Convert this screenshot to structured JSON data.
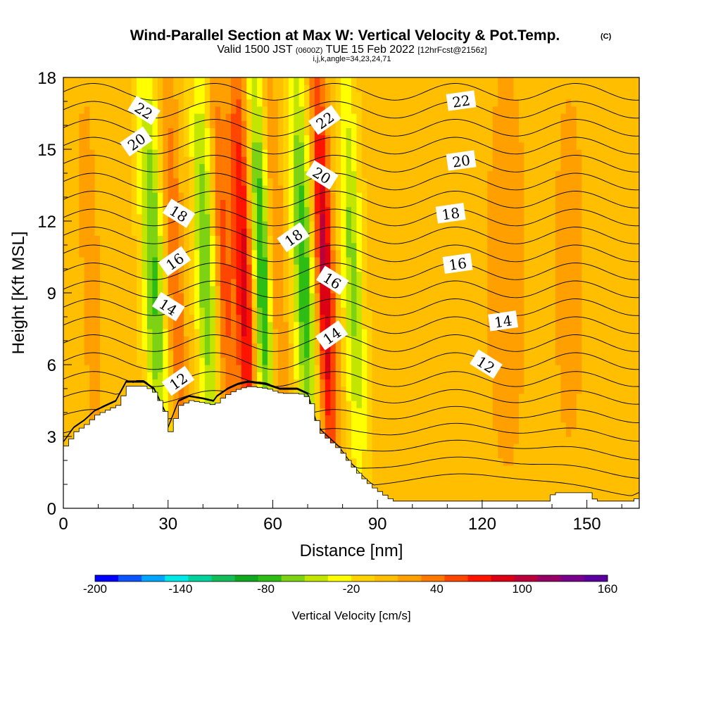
{
  "chart_data": {
    "type": "heatmap",
    "title": "Wind-Parallel Section at Max W: Vertical Velocity & Pot.Temp.",
    "title_tag": "(C)",
    "subtitle_main": "Valid 1500 JST",
    "subtitle_utc": "(0600Z)",
    "subtitle_date": "TUE 15 Feb 2022",
    "subtitle_fcst": "[12hrFcst@2156z]",
    "subtitle_index": "i,j,k,angle=34,23,24,71",
    "xlabel": "Distance [nm]",
    "ylabel": "Height [Kft MSL]",
    "xlim": [
      0,
      165
    ],
    "ylim": [
      0,
      18
    ],
    "x_ticks": [
      "0",
      "30",
      "60",
      "90",
      "120",
      "150"
    ],
    "y_ticks": [
      "0",
      "3",
      "6",
      "9",
      "12",
      "15",
      "18"
    ],
    "x_tick_values": [
      0,
      30,
      60,
      90,
      120,
      150
    ],
    "y_tick_values": [
      0,
      3,
      6,
      9,
      12,
      15,
      18
    ],
    "colorbar": {
      "label": "Vertical Velocity [cm/s]",
      "range": [
        -200,
        160
      ],
      "tick_labels": [
        "-200",
        "-140",
        "-80",
        "-20",
        "40",
        "100",
        "160"
      ],
      "colors": [
        "#0000ff",
        "#0a55ff",
        "#00a5ff",
        "#00e8e8",
        "#00d29b",
        "#14bd5a",
        "#0fa81e",
        "#2dbd14",
        "#7dd214",
        "#c2e600",
        "#ffff00",
        "#ffd200",
        "#ffbe00",
        "#ffa000",
        "#ff7800",
        "#ff4600",
        "#ff1400",
        "#dc0014",
        "#b9003c",
        "#960064",
        "#78008c",
        "#5a00a0"
      ]
    },
    "wind_bands": [
      {
        "x": 8,
        "halfwidth": 3,
        "w": 20
      },
      {
        "x": 26,
        "halfwidth": 3.2,
        "w": -75
      },
      {
        "x": 32,
        "halfwidth": 2.5,
        "w": 45
      },
      {
        "x": 41,
        "halfwidth": 3,
        "w": -70
      },
      {
        "x": 46,
        "halfwidth": 2.5,
        "w": 50
      },
      {
        "x": 52,
        "halfwidth": 3,
        "w": 90
      },
      {
        "x": 57,
        "halfwidth": 3,
        "w": -95
      },
      {
        "x": 61,
        "halfwidth": 2.5,
        "w": 40
      },
      {
        "x": 69,
        "halfwidth": 3,
        "w": -85
      },
      {
        "x": 75,
        "halfwidth": 2.5,
        "w": 100
      },
      {
        "x": 83,
        "halfwidth": 3,
        "w": -60
      },
      {
        "x": 127,
        "halfwidth": 6,
        "w": 25
      },
      {
        "x": 145,
        "halfwidth": 5,
        "w": 20
      }
    ],
    "theta_contours": [
      {
        "label": "12",
        "height": 5.0
      },
      {
        "label": "14",
        "height": 7.7
      },
      {
        "label": "16",
        "height": 10.1
      },
      {
        "label": "18",
        "height": 12.2
      },
      {
        "label": "20",
        "height": 14.5
      },
      {
        "label": "22",
        "height": 16.8
      }
    ],
    "contour_labels": [
      {
        "text": "22",
        "x": 23,
        "y": 16.6
      },
      {
        "text": "22",
        "x": 75,
        "y": 16.2
      },
      {
        "text": "22",
        "x": 114,
        "y": 17.0
      },
      {
        "text": "20",
        "x": 21,
        "y": 15.3
      },
      {
        "text": "20",
        "x": 74,
        "y": 13.9
      },
      {
        "text": "20",
        "x": 114,
        "y": 14.5
      },
      {
        "text": "18",
        "x": 33,
        "y": 12.3
      },
      {
        "text": "18",
        "x": 66,
        "y": 11.3
      },
      {
        "text": "18",
        "x": 111,
        "y": 12.3
      },
      {
        "text": "16",
        "x": 32,
        "y": 10.3
      },
      {
        "text": "16",
        "x": 77,
        "y": 9.5
      },
      {
        "text": "16",
        "x": 113,
        "y": 10.2
      },
      {
        "text": "14",
        "x": 30,
        "y": 8.4
      },
      {
        "text": "14",
        "x": 77,
        "y": 7.2
      },
      {
        "text": "14",
        "x": 126,
        "y": 7.8
      },
      {
        "text": "12",
        "x": 33,
        "y": 5.3
      },
      {
        "text": "12",
        "x": 121,
        "y": 6.0
      }
    ],
    "terrain": [
      [
        0,
        2.6
      ],
      [
        3,
        3.2
      ],
      [
        6,
        3.5
      ],
      [
        9,
        3.9
      ],
      [
        15,
        4.3
      ],
      [
        18,
        5.1
      ],
      [
        23,
        5.1
      ],
      [
        26,
        4.8
      ],
      [
        29,
        3.9
      ],
      [
        30,
        3.2
      ],
      [
        33,
        4.3
      ],
      [
        36,
        4.5
      ],
      [
        40,
        4.4
      ],
      [
        43,
        4.3
      ],
      [
        44,
        4.5
      ],
      [
        47,
        4.8
      ],
      [
        50,
        5.0
      ],
      [
        53,
        5.1
      ],
      [
        58,
        5.0
      ],
      [
        62,
        4.8
      ],
      [
        67,
        4.8
      ],
      [
        70,
        4.6
      ],
      [
        73,
        3.2
      ],
      [
        76,
        2.8
      ],
      [
        79,
        2.4
      ],
      [
        82,
        1.8
      ],
      [
        85,
        1.3
      ],
      [
        88,
        0.9
      ],
      [
        91,
        0.6
      ],
      [
        94,
        0.3
      ],
      [
        98,
        0.3
      ],
      [
        138,
        0.3
      ],
      [
        140,
        0.65
      ],
      [
        150,
        0.65
      ],
      [
        152,
        0.3
      ],
      [
        162,
        0.3
      ],
      [
        165,
        0.5
      ]
    ]
  }
}
